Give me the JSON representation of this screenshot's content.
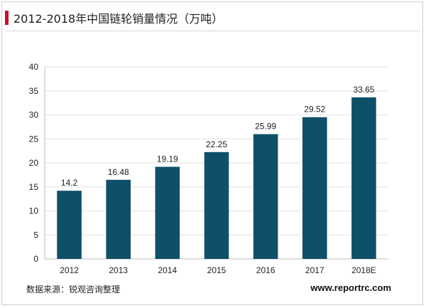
{
  "header": {
    "title": "2012-2018年中国链轮销量情况（万吨）"
  },
  "footer": {
    "source": "数据来源：锐观咨询整理",
    "website": "www.reportrc.com"
  },
  "colors": {
    "accent": "#c8102e",
    "bar": "#0e5068"
  },
  "chart_data": {
    "type": "bar",
    "title": "2012-2018年中国链轮销量情况（万吨）",
    "categories": [
      "2012",
      "2013",
      "2014",
      "2015",
      "2016",
      "2017",
      "2018E"
    ],
    "values": [
      14.2,
      16.48,
      19.19,
      22.25,
      25.99,
      29.52,
      33.65
    ],
    "value_labels": [
      "14.2",
      "16.48",
      "19.19",
      "22.25",
      "25.99",
      "29.52",
      "33.65"
    ],
    "ylim": [
      0,
      40
    ],
    "yticks": [
      "0",
      "5",
      "10",
      "15",
      "20",
      "25",
      "30",
      "35",
      "40"
    ],
    "grid": true,
    "xlabel": "",
    "ylabel": ""
  }
}
